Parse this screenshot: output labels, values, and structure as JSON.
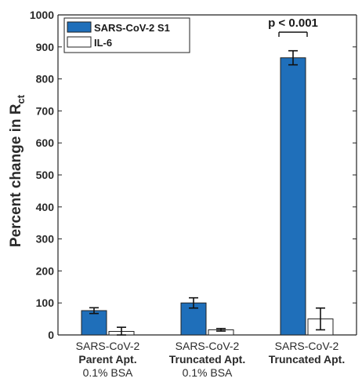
{
  "chart_data": {
    "type": "bar",
    "ylabel": "Percent change in R",
    "ylabel_subscript": "ct",
    "ylim": [
      0,
      1000
    ],
    "yticks": [
      0,
      100,
      200,
      300,
      400,
      500,
      600,
      700,
      800,
      900,
      1000
    ],
    "grid": false,
    "legend_placement": "top-left",
    "categories": [
      {
        "lines": [
          "SARS-CoV-2",
          "Parent Apt.",
          "0.1% BSA"
        ],
        "bold": [
          false,
          true,
          false
        ]
      },
      {
        "lines": [
          "SARS-CoV-2",
          "Truncated Apt.",
          "0.1% BSA"
        ],
        "bold": [
          false,
          true,
          false
        ]
      },
      {
        "lines": [
          "SARS-CoV-2",
          "Truncated Apt."
        ],
        "bold": [
          false,
          true
        ]
      }
    ],
    "series": [
      {
        "name": "SARS-CoV-2 S1",
        "color": "#1f6fba",
        "values": [
          76,
          100,
          866
        ],
        "errors": [
          9,
          16,
          22
        ]
      },
      {
        "name": "IL-6",
        "color": "#ffffff",
        "values": [
          11,
          16,
          50
        ],
        "errors": [
          13,
          4,
          34
        ]
      }
    ],
    "annotations": [
      {
        "text": "p < 0.001",
        "category_index": 2
      }
    ]
  }
}
